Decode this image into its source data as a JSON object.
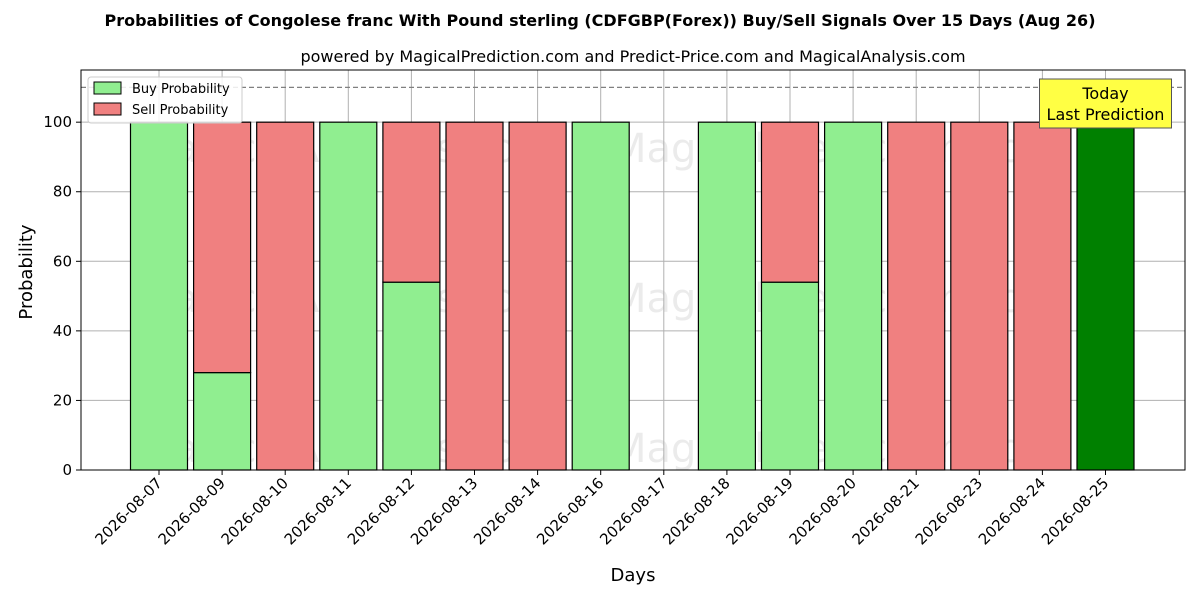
{
  "chart_data": {
    "type": "bar",
    "title": "Probabilities of Congolese franc With Pound sterling (CDFGBP(Forex)) Buy/Sell Signals Over 15 Days (Aug 26)",
    "subtitle": "powered by MagicalPrediction.com and Predict-Price.com and MagicalAnalysis.com",
    "xlabel": "Days",
    "ylabel": "Probability",
    "ylim": [
      0,
      115
    ],
    "yticks": [
      0,
      20,
      40,
      60,
      80,
      100
    ],
    "grid": true,
    "legend_position": "top-left",
    "reference_line": 110,
    "categories": [
      "2026-08-07",
      "2026-08-09",
      "2026-08-10",
      "2026-08-11",
      "2026-08-12",
      "2026-08-13",
      "2026-08-14",
      "2026-08-16",
      "2026-08-17",
      "2026-08-18",
      "2026-08-19",
      "2026-08-20",
      "2026-08-21",
      "2026-08-23",
      "2026-08-24",
      "2026-08-25"
    ],
    "series": [
      {
        "name": "Buy Probability",
        "color": "#90ee90",
        "values": [
          100,
          28,
          0,
          100,
          54,
          0,
          0,
          100,
          0,
          100,
          54,
          100,
          0,
          0,
          0,
          100
        ]
      },
      {
        "name": "Sell Probability",
        "color": "#f08080",
        "values": [
          0,
          72,
          100,
          0,
          46,
          100,
          100,
          0,
          0,
          0,
          46,
          0,
          100,
          100,
          100,
          0
        ]
      }
    ],
    "highlight": {
      "category": "2026-08-25",
      "color": "#008000"
    },
    "annotation": {
      "lines": [
        "Today",
        "Last Prediction"
      ],
      "category": "2026-08-25",
      "bg": "#ffff44"
    },
    "watermarks": [
      "MagicalAnalysis.com",
      "MagicalPrediction.com"
    ]
  }
}
